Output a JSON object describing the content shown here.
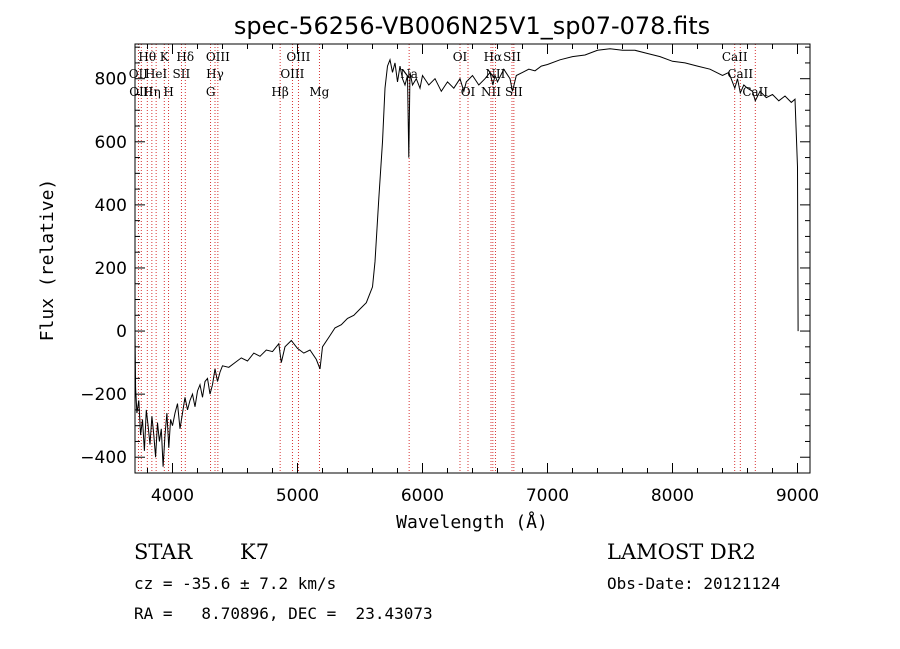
{
  "chart_data": {
    "type": "line",
    "title": "spec-56256-VB006N25V1_sp07-078.fits",
    "xlabel": "Wavelength (Å)",
    "ylabel": "Flux (relative)",
    "xlim": [
      3700,
      9100
    ],
    "ylim": [
      -450,
      910
    ],
    "xticks": [
      4000,
      5000,
      6000,
      7000,
      8000,
      9000
    ],
    "yticks": [
      -400,
      -200,
      0,
      200,
      400,
      600,
      800
    ],
    "grid": false,
    "series": [
      {
        "points": [
          [
            3700,
            0
          ],
          [
            3705,
            -180
          ],
          [
            3715,
            -260
          ],
          [
            3730,
            -220
          ],
          [
            3745,
            -330
          ],
          [
            3760,
            -280
          ],
          [
            3775,
            -380
          ],
          [
            3790,
            -250
          ],
          [
            3805,
            -300
          ],
          [
            3820,
            -360
          ],
          [
            3835,
            -270
          ],
          [
            3850,
            -330
          ],
          [
            3865,
            -400
          ],
          [
            3880,
            -290
          ],
          [
            3895,
            -350
          ],
          [
            3910,
            -310
          ],
          [
            3925,
            -430
          ],
          [
            3940,
            -330
          ],
          [
            3955,
            -260
          ],
          [
            3970,
            -370
          ],
          [
            3985,
            -280
          ],
          [
            4000,
            -300
          ],
          [
            4020,
            -260
          ],
          [
            4040,
            -230
          ],
          [
            4060,
            -310
          ],
          [
            4080,
            -260
          ],
          [
            4100,
            -210
          ],
          [
            4120,
            -250
          ],
          [
            4140,
            -220
          ],
          [
            4160,
            -200
          ],
          [
            4180,
            -240
          ],
          [
            4200,
            -190
          ],
          [
            4220,
            -170
          ],
          [
            4240,
            -210
          ],
          [
            4260,
            -160
          ],
          [
            4280,
            -150
          ],
          [
            4300,
            -200
          ],
          [
            4320,
            -170
          ],
          [
            4340,
            -120
          ],
          [
            4360,
            -160
          ],
          [
            4380,
            -130
          ],
          [
            4400,
            -110
          ],
          [
            4450,
            -115
          ],
          [
            4500,
            -100
          ],
          [
            4550,
            -85
          ],
          [
            4600,
            -95
          ],
          [
            4650,
            -70
          ],
          [
            4700,
            -80
          ],
          [
            4750,
            -60
          ],
          [
            4800,
            -65
          ],
          [
            4850,
            -40
          ],
          [
            4870,
            -100
          ],
          [
            4900,
            -50
          ],
          [
            4950,
            -30
          ],
          [
            5000,
            -55
          ],
          [
            5050,
            -70
          ],
          [
            5100,
            -60
          ],
          [
            5150,
            -90
          ],
          [
            5180,
            -120
          ],
          [
            5200,
            -50
          ],
          [
            5250,
            -20
          ],
          [
            5300,
            10
          ],
          [
            5350,
            20
          ],
          [
            5400,
            40
          ],
          [
            5450,
            50
          ],
          [
            5500,
            70
          ],
          [
            5550,
            90
          ],
          [
            5600,
            140
          ],
          [
            5620,
            220
          ],
          [
            5650,
            420
          ],
          [
            5680,
            600
          ],
          [
            5700,
            770
          ],
          [
            5720,
            840
          ],
          [
            5740,
            860
          ],
          [
            5760,
            820
          ],
          [
            5780,
            850
          ],
          [
            5800,
            790
          ],
          [
            5820,
            840
          ],
          [
            5840,
            800
          ],
          [
            5860,
            780
          ],
          [
            5880,
            810
          ],
          [
            5890,
            550
          ],
          [
            5900,
            820
          ],
          [
            5920,
            780
          ],
          [
            5950,
            800
          ],
          [
            5980,
            770
          ],
          [
            6000,
            810
          ],
          [
            6050,
            780
          ],
          [
            6100,
            800
          ],
          [
            6150,
            760
          ],
          [
            6200,
            790
          ],
          [
            6250,
            770
          ],
          [
            6300,
            800
          ],
          [
            6330,
            760
          ],
          [
            6350,
            790
          ],
          [
            6400,
            810
          ],
          [
            6450,
            780
          ],
          [
            6500,
            800
          ],
          [
            6540,
            820
          ],
          [
            6563,
            780
          ],
          [
            6580,
            810
          ],
          [
            6600,
            790
          ],
          [
            6650,
            830
          ],
          [
            6700,
            800
          ],
          [
            6720,
            760
          ],
          [
            6750,
            810
          ],
          [
            6800,
            820
          ],
          [
            6850,
            830
          ],
          [
            6900,
            825
          ],
          [
            6950,
            840
          ],
          [
            7000,
            845
          ],
          [
            7100,
            860
          ],
          [
            7200,
            870
          ],
          [
            7300,
            875
          ],
          [
            7400,
            890
          ],
          [
            7500,
            895
          ],
          [
            7600,
            890
          ],
          [
            7700,
            890
          ],
          [
            7800,
            880
          ],
          [
            7900,
            870
          ],
          [
            8000,
            855
          ],
          [
            8100,
            850
          ],
          [
            8200,
            840
          ],
          [
            8300,
            830
          ],
          [
            8400,
            810
          ],
          [
            8450,
            820
          ],
          [
            8498,
            770
          ],
          [
            8520,
            800
          ],
          [
            8542,
            755
          ],
          [
            8570,
            780
          ],
          [
            8600,
            770
          ],
          [
            8640,
            760
          ],
          [
            8662,
            730
          ],
          [
            8700,
            760
          ],
          [
            8750,
            740
          ],
          [
            8800,
            750
          ],
          [
            8850,
            730
          ],
          [
            8900,
            745
          ],
          [
            8950,
            725
          ],
          [
            8980,
            735
          ],
          [
            9000,
            520
          ],
          [
            9005,
            0
          ]
        ]
      }
    ],
    "line_markers": [
      {
        "wl": 3727,
        "label": "OII",
        "row": 2
      },
      {
        "wl": 3750,
        "label": "OIII",
        "row": 3
      },
      {
        "wl": 3798,
        "label": "Hθ",
        "row": 1
      },
      {
        "wl": 3835,
        "label": "Hη",
        "row": 3
      },
      {
        "wl": 3869,
        "label": "HeI",
        "row": 2
      },
      {
        "wl": 3934,
        "label": "K",
        "row": 1
      },
      {
        "wl": 3969,
        "label": "H",
        "row": 3
      },
      {
        "wl": 4071,
        "label": "SII",
        "row": 2
      },
      {
        "wl": 4102,
        "label": "Hδ",
        "row": 1
      },
      {
        "wl": 4305,
        "label": "G",
        "row": 3
      },
      {
        "wl": 4340,
        "label": "Hγ",
        "row": 2
      },
      {
        "wl": 4363,
        "label": "OIII",
        "row": 1
      },
      {
        "wl": 4861,
        "label": "Hβ",
        "row": 3
      },
      {
        "wl": 4959,
        "label": "OIII",
        "row": 2
      },
      {
        "wl": 5007,
        "label": "OIII",
        "row": 1
      },
      {
        "wl": 5175,
        "label": "Mg",
        "row": 3
      },
      {
        "wl": 5893,
        "label": "Na",
        "row": 2
      },
      {
        "wl": 6300,
        "label": "OI",
        "row": 1
      },
      {
        "wl": 6364,
        "label": "OI",
        "row": 3
      },
      {
        "wl": 6548,
        "label": "NII",
        "row": 3
      },
      {
        "wl": 6563,
        "label": "Hα",
        "row": 1
      },
      {
        "wl": 6583,
        "label": "NII",
        "row": 2
      },
      {
        "wl": 6716,
        "label": "SII",
        "row": 1
      },
      {
        "wl": 6731,
        "label": "SII",
        "row": 3
      },
      {
        "wl": 8498,
        "label": "CaII",
        "row": 1
      },
      {
        "wl": 8542,
        "label": "CaII",
        "row": 2
      },
      {
        "wl": 8662,
        "label": "CaII",
        "row": 3
      }
    ],
    "colors": {
      "spectrum": "#000000",
      "marker": "#cc0000",
      "axes": "#000000"
    }
  },
  "footer": {
    "object_class": "STAR",
    "subclass": "K7",
    "survey": "LAMOST DR2",
    "cz_text": "cz = -35.6 ± 7.2 km/s",
    "obs_date": "Obs-Date: 20121124",
    "coords": "RA =   8.70896, DEC =  23.43073"
  }
}
